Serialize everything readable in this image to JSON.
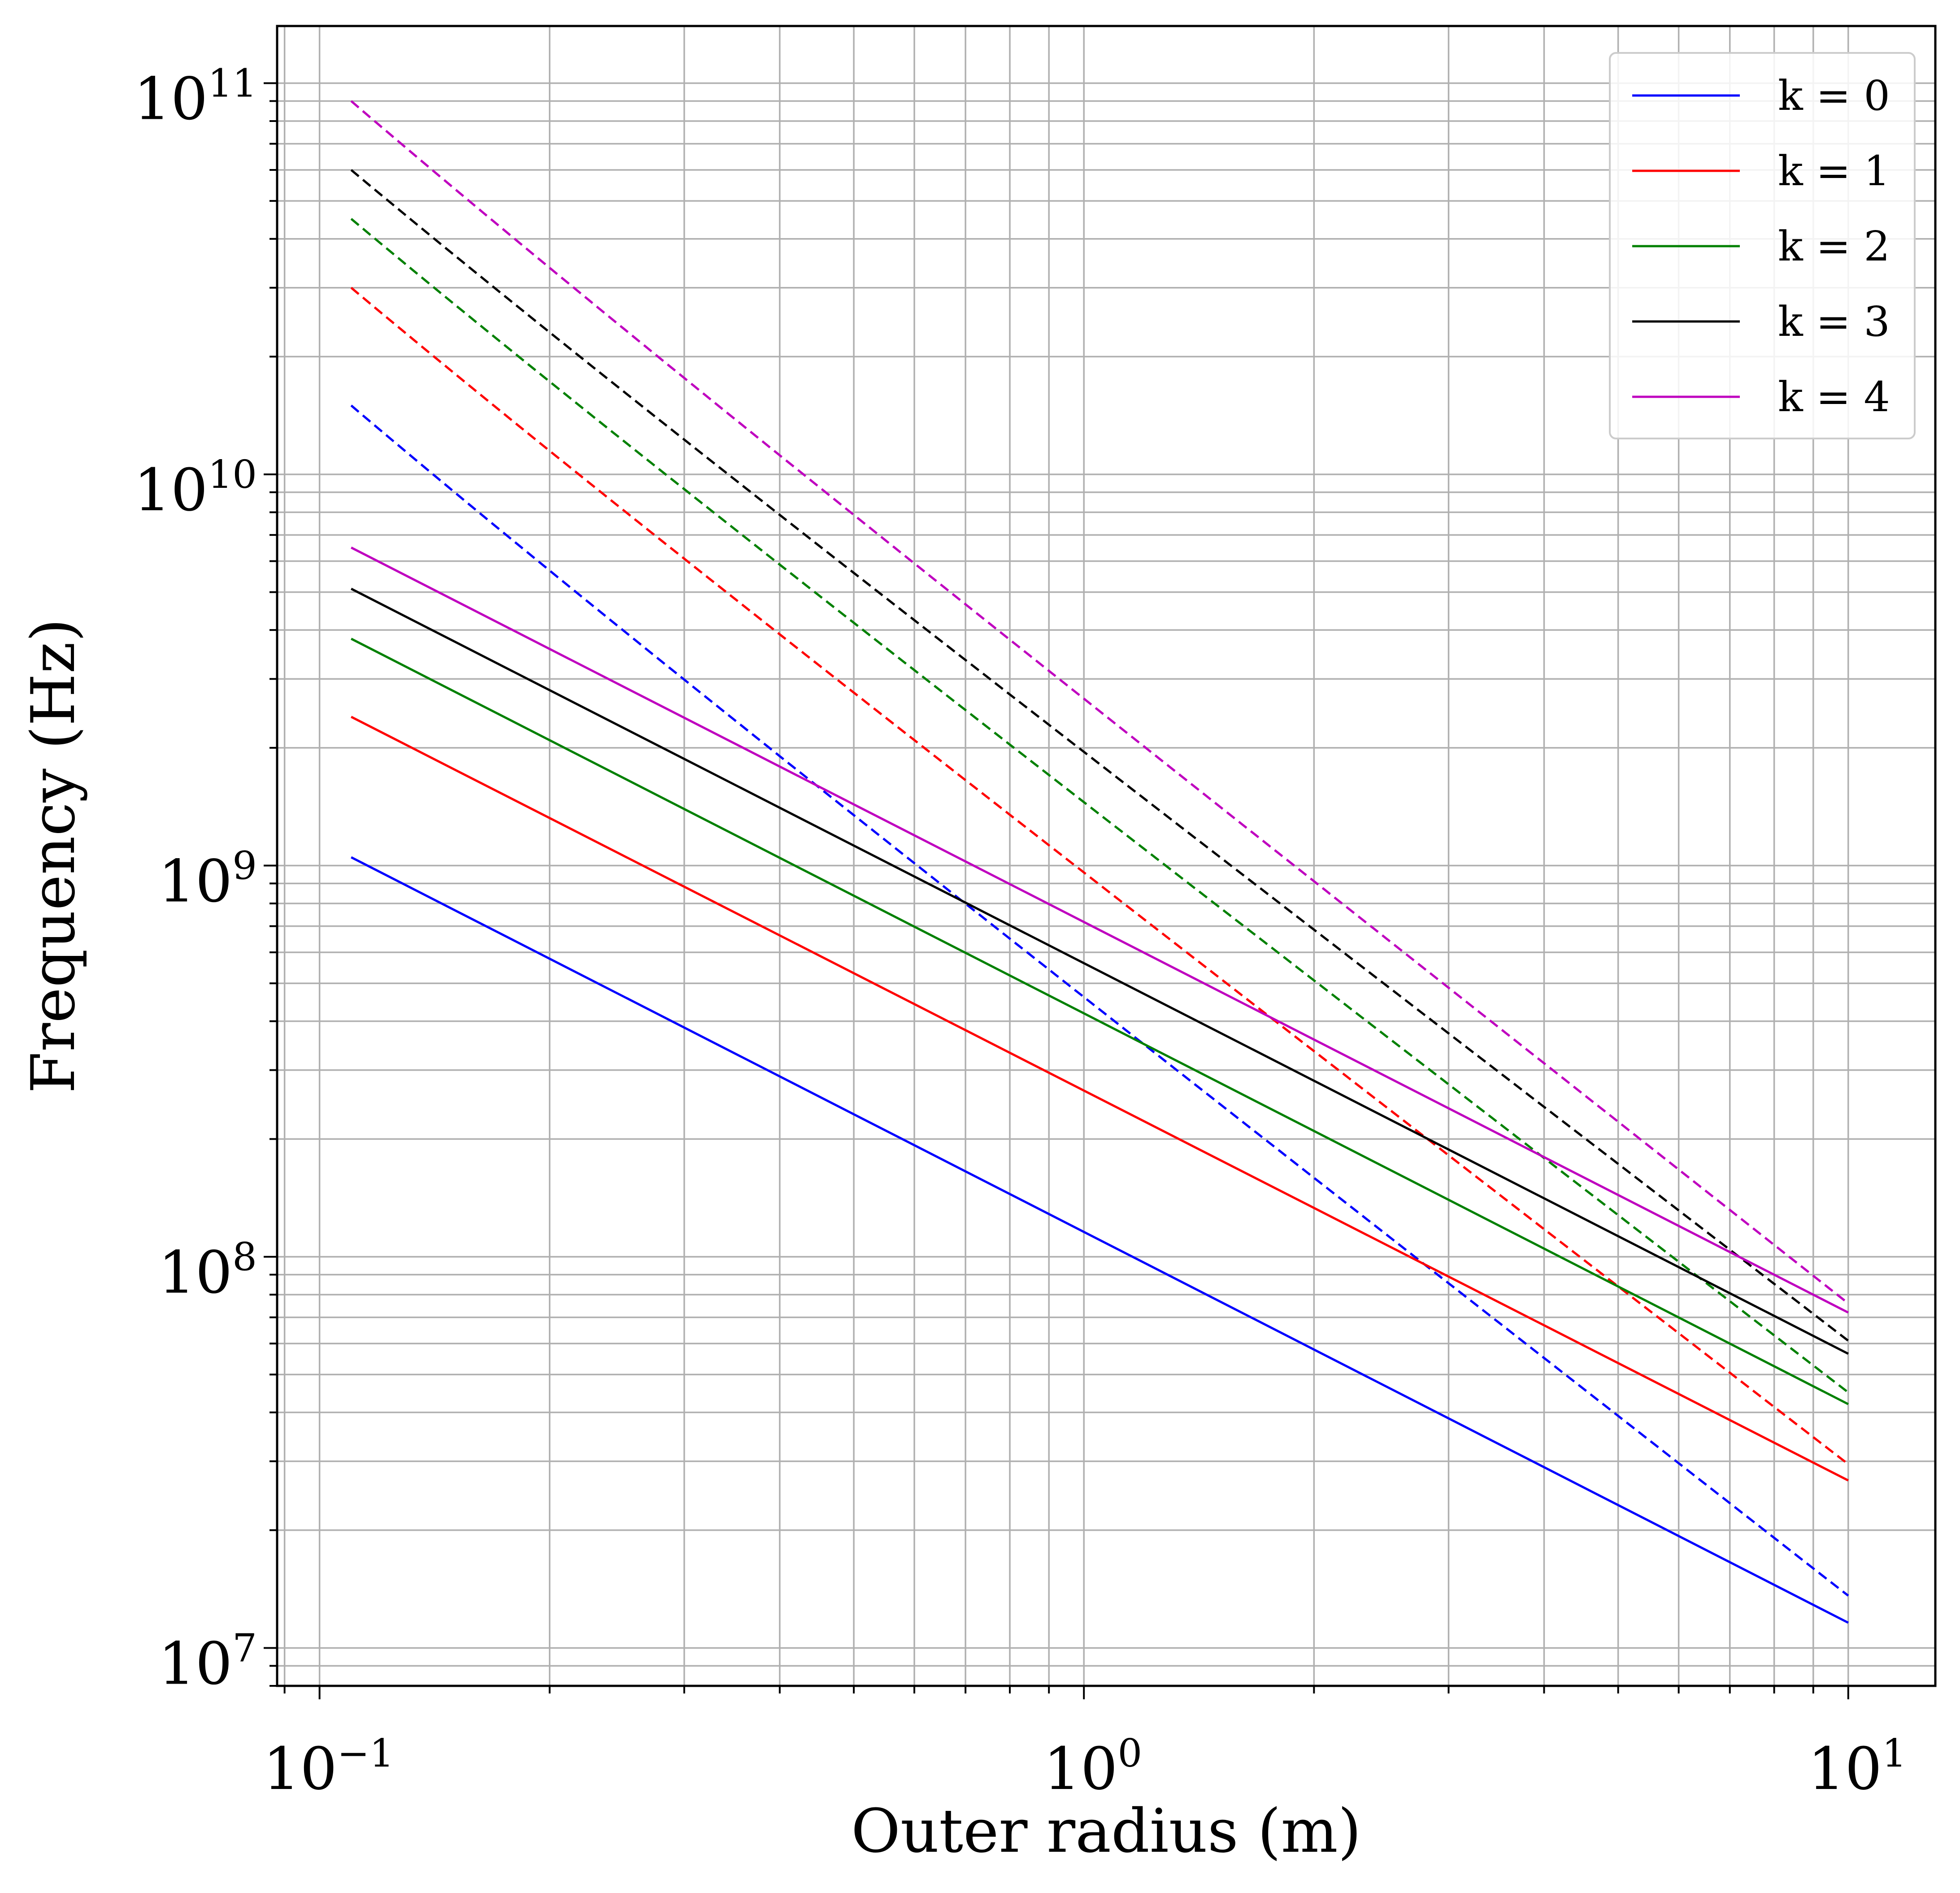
{
  "chart_data": {
    "type": "line",
    "title": "",
    "xlabel": "Outer radius (m)",
    "ylabel": "Frequency (Hz)",
    "xscale": "log",
    "yscale": "log",
    "xlim": [
      0.088,
      13.0
    ],
    "ylim": [
      8000000,
      140000000000
    ],
    "grid": true,
    "legend_position": "top-right",
    "x_ticks": [
      {
        "base": "10",
        "exp": "−1"
      },
      {
        "base": "10",
        "exp": "0"
      },
      {
        "base": "10",
        "exp": "1"
      }
    ],
    "y_ticks": [
      {
        "base": "10",
        "exp": "7"
      },
      {
        "base": "10",
        "exp": "8"
      },
      {
        "base": "10",
        "exp": "9"
      },
      {
        "base": "10",
        "exp": "10"
      },
      {
        "base": "10",
        "exp": "11"
      }
    ],
    "x_range": [
      0.11,
      10.0
    ],
    "series": [
      {
        "name": "k = 0",
        "color": "#0000ff",
        "solid": {
          "start": 1050000000,
          "end": 11600000
        },
        "dashed": {
          "start": 15000000000,
          "end": 13600000,
          "curvature": 0.009
        }
      },
      {
        "name": "k = 1",
        "color": "#ff0000",
        "solid": {
          "start": 2400000000,
          "end": 26800000
        },
        "dashed": {
          "start": 30000000000,
          "end": 29500000,
          "curvature": 0.009
        }
      },
      {
        "name": "k = 2",
        "color": "#008000",
        "solid": {
          "start": 3800000000,
          "end": 42000000
        },
        "dashed": {
          "start": 45000000000,
          "end": 45000000,
          "curvature": 0.009
        }
      },
      {
        "name": "k = 3",
        "color": "#000000",
        "solid": {
          "start": 5100000000,
          "end": 56500000
        },
        "dashed": {
          "start": 60000000000,
          "end": 61000000,
          "curvature": 0.009
        }
      },
      {
        "name": "k = 4",
        "color": "#bf00bf",
        "solid": {
          "start": 6500000000,
          "end": 72000000
        },
        "dashed": {
          "start": 90000000000,
          "end": 76000000,
          "curvature": 0.009
        }
      }
    ]
  }
}
